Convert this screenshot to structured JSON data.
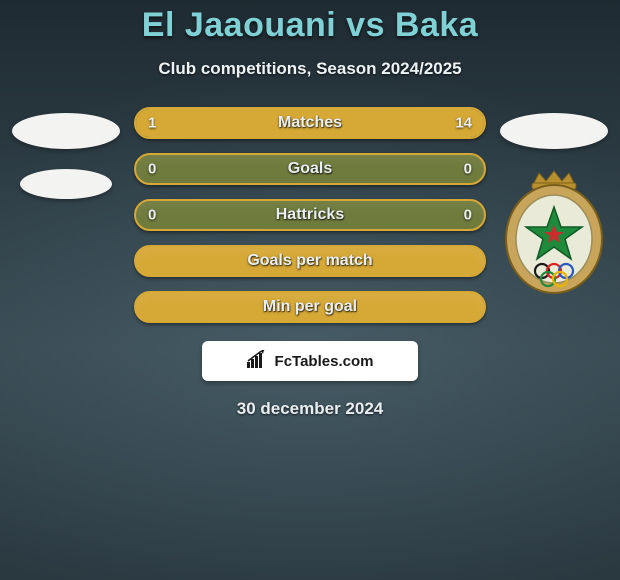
{
  "title": "El Jaaouani vs Baka",
  "subtitle": "Club competitions, Season 2024/2025",
  "date": "30 december 2024",
  "brand": "FcTables.com",
  "colors": {
    "title": "#7fd1d6",
    "text": "#e9eef0",
    "bar_bg": "#6f7a3d",
    "bar_border": "#d6a836",
    "bar_fill": "#d6a836",
    "badge_bg": "#ffffff",
    "page_bg": "#2a3942"
  },
  "typography": {
    "title_fontsize": 34,
    "subtitle_fontsize": 17,
    "bar_label_fontsize": 16,
    "bar_value_fontsize": 15,
    "date_fontsize": 17
  },
  "bars": [
    {
      "label": "Matches",
      "left": "1",
      "right": "14",
      "left_fill_pct": 7,
      "right_fill_pct": 93,
      "full": false
    },
    {
      "label": "Goals",
      "left": "0",
      "right": "0",
      "left_fill_pct": 0,
      "right_fill_pct": 0,
      "full": false
    },
    {
      "label": "Hattricks",
      "left": "0",
      "right": "0",
      "left_fill_pct": 0,
      "right_fill_pct": 0,
      "full": false
    },
    {
      "label": "Goals per match",
      "left": "",
      "right": "",
      "left_fill_pct": 0,
      "right_fill_pct": 0,
      "full": true
    },
    {
      "label": "Min per goal",
      "left": "",
      "right": "",
      "left_fill_pct": 0,
      "right_fill_pct": 0,
      "full": true
    }
  ],
  "left_side": {
    "ovals": 2
  },
  "right_side": {
    "ovals": 1,
    "crest": {
      "outer_color": "#c9a45b",
      "inner_color": "#e9ead8",
      "star_color": "#1f8a3b",
      "ring_colors": [
        "#1a1a1a",
        "#d22",
        "#2a58c0",
        "#1f8a3b",
        "#e8b400"
      ],
      "crown_color": "#b9902f"
    }
  },
  "brand_icon": {
    "shape": "bar-rise",
    "color": "#1a1a1a"
  }
}
